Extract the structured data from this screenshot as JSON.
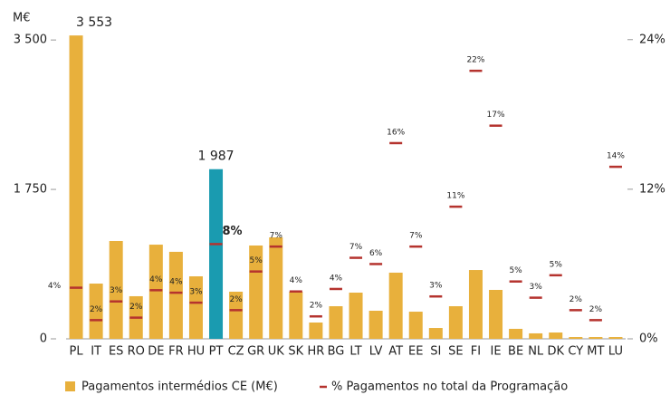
{
  "chart_data": {
    "type": "bar_marker",
    "y_axis_label": "M€",
    "categories": [
      "PL",
      "IT",
      "ES",
      "RO",
      "DE",
      "FR",
      "HU",
      "PT",
      "CZ",
      "GR",
      "UK",
      "SK",
      "HR",
      "BG",
      "LT",
      "LV",
      "AT",
      "EE",
      "SI",
      "SE",
      "FI",
      "IE",
      "BE",
      "NL",
      "DK",
      "CY",
      "MT",
      "LU"
    ],
    "series": [
      {
        "name": "Pagamentos intermédios CE (M€)",
        "color": "#e8b03c",
        "highlight": {
          "index": 7,
          "color": "#1a9bb0"
        },
        "values": [
          3553,
          647,
          1146,
          499,
          1103,
          1019,
          732,
          1987,
          552,
          1093,
          1188,
          552,
          191,
          382,
          541,
          329,
          775,
          318,
          127,
          382,
          806,
          573,
          117,
          64,
          74,
          21,
          21,
          21
        ],
        "value_labels": [
          "3 553",
          null,
          null,
          null,
          null,
          null,
          null,
          "1 987",
          null,
          null,
          null,
          null,
          null,
          null,
          null,
          null,
          null,
          null,
          null,
          null,
          null,
          null,
          null,
          null,
          null,
          null,
          null,
          null
        ]
      },
      {
        "name": "% Pagamentos no total da Programação",
        "color": "#b5332e",
        "axis": "y2",
        "values": [
          4.1,
          1.5,
          3.0,
          1.7,
          3.9,
          3.7,
          2.9,
          7.6,
          2.3,
          5.4,
          7.4,
          3.8,
          1.8,
          4.0,
          6.5,
          6.0,
          15.7,
          7.4,
          3.4,
          10.6,
          21.5,
          17.1,
          4.6,
          3.3,
          5.1,
          2.3,
          1.5,
          13.8
        ],
        "value_labels": [
          "4%",
          "2%",
          "3%",
          "2%",
          "4%",
          "4%",
          "3%",
          "8%",
          "2%",
          "5%",
          "7%",
          "4%",
          "2%",
          "4%",
          "7%",
          "6%",
          "16%",
          "7%",
          "3%",
          "11%",
          "22%",
          "17%",
          "5%",
          "3%",
          "5%",
          "2%",
          "2%",
          "14%"
        ]
      }
    ],
    "ylim": [
      0,
      3650
    ],
    "yticks": [
      0,
      {
        "value": 1750,
        "label": "1 750"
      },
      {
        "value": 3500,
        "label": "3 500"
      }
    ],
    "y2lim": [
      0,
      25
    ],
    "y2ticks": [
      {
        "value": 0,
        "label": "0%"
      },
      {
        "value": 12,
        "label": "12%"
      },
      {
        "value": 24,
        "label": "24%"
      }
    ],
    "grid": false
  }
}
